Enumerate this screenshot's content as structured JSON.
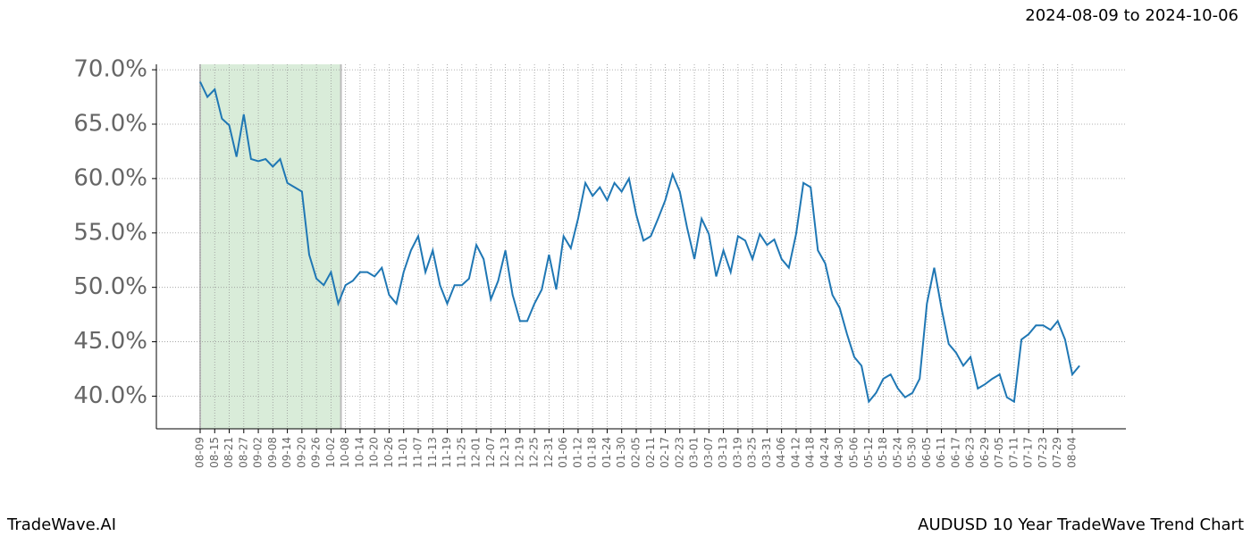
{
  "chart_data": {
    "type": "line",
    "title": "2024-08-09 to 2024-10-06",
    "footer_left": "TradeWave.AI",
    "footer_right": "AUDUSD 10 Year TradeWave Trend Chart",
    "categories": [
      "08-09",
      null,
      "08-15",
      null,
      "08-21",
      null,
      "08-27",
      null,
      "09-02",
      null,
      "09-08",
      null,
      "09-14",
      null,
      "09-20",
      null,
      "09-26",
      null,
      "10-02",
      null,
      "10-08",
      null,
      "10-14",
      null,
      "10-20",
      null,
      "10-26",
      null,
      "11-01",
      null,
      "11-07",
      null,
      "11-13",
      null,
      "11-19",
      null,
      "11-25",
      null,
      "12-01",
      null,
      "12-07",
      null,
      "12-13",
      null,
      "12-19",
      null,
      "12-25",
      null,
      "12-31",
      null,
      "01-06",
      null,
      "01-12",
      null,
      "01-18",
      null,
      "01-24",
      null,
      "01-30",
      null,
      "02-05",
      null,
      "02-11",
      null,
      "02-17",
      null,
      "02-23",
      null,
      "03-01",
      null,
      "03-07",
      null,
      "03-13",
      null,
      "03-19",
      null,
      "03-25",
      null,
      "03-31",
      null,
      "04-06",
      null,
      "04-12",
      null,
      "04-18",
      null,
      "04-24",
      null,
      "04-30",
      null,
      "05-06",
      null,
      "05-12",
      null,
      "05-18",
      null,
      "05-24",
      null,
      "05-30",
      null,
      "06-05",
      null,
      "06-11",
      null,
      "06-17",
      null,
      "06-23",
      null,
      "06-29",
      null,
      "07-05",
      null,
      "07-11",
      null,
      "07-17",
      null,
      "07-23",
      null,
      "07-29",
      null,
      "08-04",
      null
    ],
    "series": [
      {
        "color": "#1f77b4",
        "values": [
          68.9,
          67.5,
          68.2,
          65.5,
          64.9,
          62.0,
          65.9,
          61.8,
          61.6,
          61.8,
          61.1,
          61.8,
          59.6,
          59.2,
          58.8,
          53.0,
          50.8,
          50.2,
          51.4,
          48.5,
          50.2,
          50.6,
          51.4,
          51.4,
          51.0,
          51.8,
          49.3,
          48.5,
          51.4,
          53.4,
          54.7,
          51.4,
          53.4,
          50.2,
          48.5,
          50.2,
          50.2,
          50.8,
          53.9,
          52.6,
          48.9,
          50.6,
          53.4,
          49.3,
          46.9,
          46.9,
          48.5,
          49.8,
          53.0,
          49.8,
          54.7,
          53.6,
          56.3,
          59.6,
          58.4,
          59.2,
          58.0,
          59.6,
          58.8,
          60.0,
          56.7,
          54.3,
          54.7,
          56.3,
          58.0,
          60.4,
          58.8,
          55.5,
          52.6,
          56.3,
          54.9,
          51.0,
          53.4,
          51.4,
          54.7,
          54.3,
          52.6,
          54.9,
          53.9,
          54.4,
          52.6,
          51.8,
          54.9,
          59.6,
          59.2,
          53.4,
          52.2,
          49.3,
          48.1,
          45.7,
          43.6,
          42.8,
          39.5,
          40.3,
          41.6,
          42.0,
          40.7,
          39.9,
          40.3,
          41.6,
          48.5,
          51.8,
          48.1,
          44.8,
          44.0,
          42.8,
          43.6,
          40.7,
          41.1,
          41.6,
          42.0,
          39.9,
          39.5,
          45.2,
          45.7,
          46.5,
          46.5,
          46.1,
          46.9,
          45.2,
          42.0,
          42.8
        ]
      }
    ],
    "ylim": [
      37.0,
      70.5
    ],
    "yticks": [
      {
        "value": 40,
        "label": "40.0%"
      },
      {
        "value": 45,
        "label": "45.0%"
      },
      {
        "value": 50,
        "label": "50.0%"
      },
      {
        "value": 55,
        "label": "55.0%"
      },
      {
        "value": 60,
        "label": "60.0%"
      },
      {
        "value": 65,
        "label": "65.0%"
      },
      {
        "value": 70,
        "label": "70.0%"
      }
    ],
    "grid": true,
    "shade_range": [
      0,
      19
    ],
    "shade_color": "#d9ecd9"
  }
}
